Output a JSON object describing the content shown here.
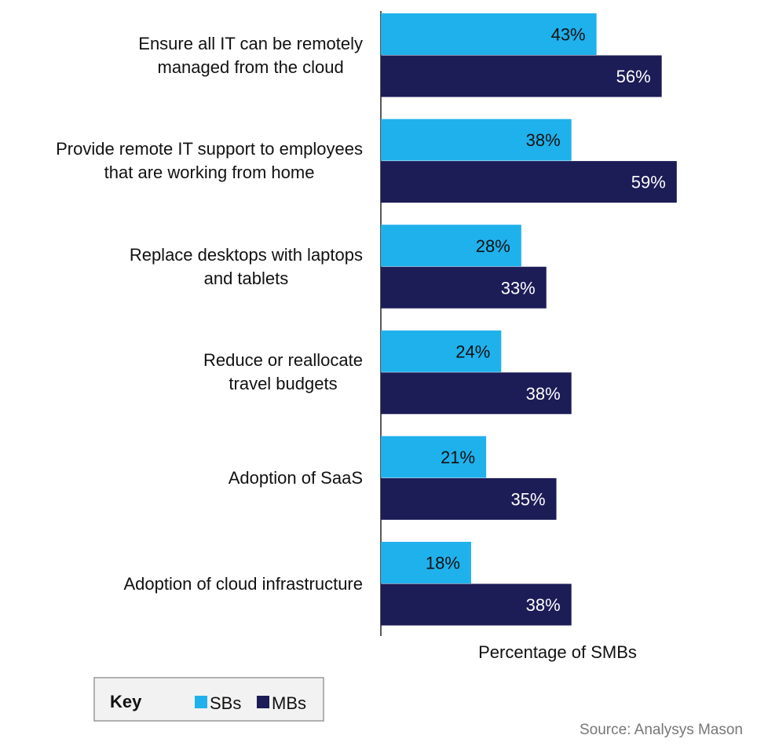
{
  "chart_data": {
    "type": "bar",
    "orientation": "horizontal",
    "categories": [
      "Ensure all IT can be remotely\nmanaged from the cloud",
      "Provide remote IT support to employees\nthat are working from home",
      "Replace desktops with laptops\nand tablets",
      "Reduce or reallocate\ntravel budgets",
      "Adoption of SaaS",
      "Adoption of cloud infrastructure"
    ],
    "series": [
      {
        "name": "SBs",
        "color": "#1fb1ec",
        "values": [
          43,
          38,
          28,
          24,
          21,
          18
        ],
        "value_labels": [
          "43%",
          "38%",
          "28%",
          "24%",
          "21%",
          "18%"
        ],
        "label_color": "#111111"
      },
      {
        "name": "MBs",
        "color": "#1c1c57",
        "values": [
          56,
          59,
          33,
          38,
          35,
          38
        ],
        "value_labels": [
          "56%",
          "59%",
          "33%",
          "38%",
          "35%",
          "38%"
        ],
        "label_color": "#ffffff"
      }
    ],
    "xlim": [
      0,
      75
    ],
    "x_label": "Percentage of SMBs",
    "legend_title": "Key",
    "source": "Source: Analysys Mason"
  }
}
